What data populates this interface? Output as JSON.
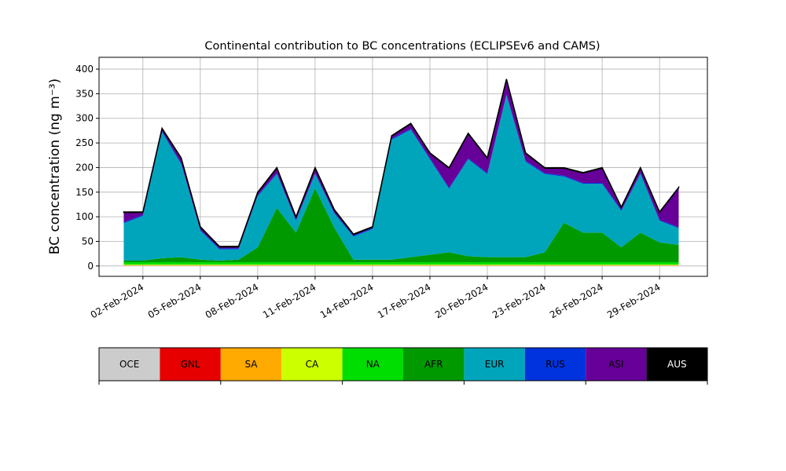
{
  "chart_data": {
    "type": "stacked_area",
    "title": "Continental contribution to BC concentrations (ECLIPSEv6 and CAMS)",
    "y_label": "BC concentration (ng m⁻³)",
    "x": [
      "2024-02-01",
      "2024-02-02",
      "2024-02-03",
      "2024-02-04",
      "2024-02-05",
      "2024-02-06",
      "2024-02-07",
      "2024-02-08",
      "2024-02-09",
      "2024-02-10",
      "2024-02-11",
      "2024-02-12",
      "2024-02-13",
      "2024-02-14",
      "2024-02-15",
      "2024-02-16",
      "2024-02-17",
      "2024-02-18",
      "2024-02-19",
      "2024-02-20",
      "2024-02-21",
      "2024-02-22",
      "2024-02-23",
      "2024-02-24",
      "2024-02-25",
      "2024-02-26",
      "2024-02-27",
      "2024-02-28",
      "2024-02-29",
      "2024-03-01"
    ],
    "xlim": [
      "2024-01-30T17:00",
      "2024-03-02T12:00"
    ],
    "xticks": [
      {
        "value": "2024-02-02",
        "label": "02-Feb-2024"
      },
      {
        "value": "2024-02-05",
        "label": "05-Feb-2024"
      },
      {
        "value": "2024-02-08",
        "label": "08-Feb-2024"
      },
      {
        "value": "2024-02-11",
        "label": "11-Feb-2024"
      },
      {
        "value": "2024-02-14",
        "label": "14-Feb-2024"
      },
      {
        "value": "2024-02-17",
        "label": "17-Feb-2024"
      },
      {
        "value": "2024-02-20",
        "label": "20-Feb-2024"
      },
      {
        "value": "2024-02-23",
        "label": "23-Feb-2024"
      },
      {
        "value": "2024-02-26",
        "label": "26-Feb-2024"
      },
      {
        "value": "2024-02-29",
        "label": "29-Feb-2024"
      }
    ],
    "ylim": [
      -21,
      424
    ],
    "yticks": [
      0,
      50,
      100,
      150,
      200,
      250,
      300,
      350,
      400
    ],
    "grid": true,
    "series": [
      {
        "name": "OCE",
        "color": "#cccccc",
        "values": [
          0.5,
          0.5,
          0.5,
          0.5,
          0.5,
          0.5,
          0.5,
          0.5,
          0.5,
          0.5,
          0.5,
          0.5,
          0.5,
          0.5,
          0.5,
          0.5,
          0.5,
          0.5,
          0.5,
          0.5,
          0.5,
          0.5,
          0.5,
          0.5,
          0.5,
          0.5,
          0.5,
          0.5,
          0.5,
          0.5
        ]
      },
      {
        "name": "GNL",
        "color": "#e60000",
        "values": [
          0.3,
          0.3,
          0.3,
          0.3,
          0.3,
          0.3,
          0.3,
          0.3,
          0.3,
          0.3,
          0.3,
          0.3,
          0.3,
          0.3,
          0.3,
          0.3,
          0.3,
          0.3,
          0.3,
          0.3,
          0.3,
          0.3,
          0.3,
          0.3,
          0.3,
          0.3,
          0.3,
          0.3,
          0.3,
          0.3
        ]
      },
      {
        "name": "SA",
        "color": "#ffaa00",
        "values": [
          1,
          1,
          1,
          1,
          1,
          1,
          1,
          1,
          1,
          1,
          1,
          1,
          1,
          1,
          1,
          1,
          1,
          1,
          1,
          1,
          1,
          1,
          1,
          1,
          1,
          1,
          1,
          1,
          1,
          1
        ]
      },
      {
        "name": "CA",
        "color": "#ccff00",
        "values": [
          1,
          1,
          1,
          1,
          1,
          1,
          1,
          1,
          1,
          1,
          1,
          1,
          1,
          1,
          1,
          1,
          1,
          1,
          1,
          1,
          1,
          1,
          1,
          1,
          1,
          1,
          1,
          1,
          1,
          1
        ]
      },
      {
        "name": "NA",
        "color": "#00dd00",
        "values": [
          5,
          5,
          5,
          5,
          5,
          5,
          5,
          5,
          5,
          5,
          5,
          5,
          5,
          5,
          5,
          5,
          5,
          5,
          5,
          5,
          5,
          5,
          5,
          5,
          5,
          5,
          5,
          5,
          5,
          5
        ]
      },
      {
        "name": "AFR",
        "color": "#009900",
        "values": [
          3,
          3,
          8,
          10,
          5,
          3,
          5,
          30,
          110,
          60,
          150,
          70,
          5,
          5,
          5,
          10,
          15,
          20,
          12,
          10,
          10,
          10,
          20,
          80,
          60,
          60,
          30,
          60,
          40,
          35
        ]
      },
      {
        "name": "EUR",
        "color": "#00a5bb",
        "values": [
          76,
          91,
          256,
          189,
          59,
          23,
          21,
          104,
          69,
          24,
          29,
          29,
          47,
          62,
          244,
          259,
          194,
          129,
          197,
          169,
          329,
          194,
          159,
          94,
          99,
          99,
          74,
          119,
          44,
          34
        ]
      },
      {
        "name": "RUS",
        "color": "#0033dd",
        "values": [
          2,
          2,
          2,
          2,
          2,
          2,
          2,
          2,
          2,
          2,
          2,
          2,
          2,
          2,
          2,
          2,
          2,
          2,
          2,
          2,
          2,
          2,
          2,
          2,
          2,
          2,
          2,
          2,
          2,
          2
        ]
      },
      {
        "name": "ASI",
        "color": "#660099",
        "values": [
          20,
          5,
          5,
          10,
          5,
          3,
          3,
          5,
          10,
          5,
          10,
          5,
          2,
          2,
          5,
          10,
          10,
          40,
          50,
          30,
          30,
          15,
          10,
          15,
          20,
          30,
          5,
          10,
          15,
          80
        ]
      },
      {
        "name": "AUS",
        "color": "#000000",
        "values": [
          1,
          1,
          1,
          1,
          1,
          1,
          1,
          1,
          1,
          1,
          1,
          1,
          1,
          1,
          1,
          1,
          1,
          1,
          1,
          1,
          1,
          1,
          1,
          1,
          1,
          1,
          1,
          1,
          1,
          1
        ]
      }
    ]
  }
}
